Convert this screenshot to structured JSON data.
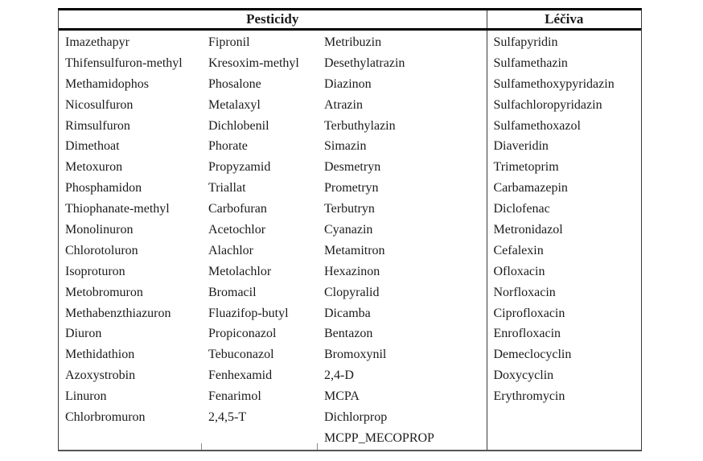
{
  "table": {
    "header": {
      "pesticides_label": "Pesticidy",
      "drugs_label": "Léčiva"
    },
    "columns": [
      {
        "section": "Pesticidy",
        "items": [
          "Imazethapyr",
          "Thifensulfuron-methyl",
          "Methamidophos",
          "Nicosulfuron",
          "Rimsulfuron",
          "Dimethoat",
          "Metoxuron",
          "Phosphamidon",
          "Thiophanate-methyl",
          "Monolinuron",
          "Chlorotoluron",
          "Isoproturon",
          "Metobromuron",
          "Methabenzthiazuron",
          "Diuron",
          "Methidathion",
          "Azoxystrobin",
          "Linuron",
          "Chlorbromuron"
        ]
      },
      {
        "section": "Pesticidy",
        "items": [
          "Fipronil",
          "Kresoxim-methyl",
          "Phosalone",
          "Metalaxyl",
          "Dichlobenil",
          "Phorate",
          "Propyzamid",
          "Triallat",
          "Carbofuran",
          "Acetochlor",
          "Alachlor",
          "Metolachlor",
          "Bromacil",
          "Fluazifop-butyl",
          "Propiconazol",
          "Tebuconazol",
          "Fenhexamid",
          "Fenarimol",
          "2,4,5-T"
        ]
      },
      {
        "section": "Pesticidy",
        "items": [
          "Metribuzin",
          "Desethylatrazin",
          "Diazinon",
          "Atrazin",
          "Terbuthylazin",
          "Simazin",
          "Desmetryn",
          "Prometryn",
          "Terbutryn",
          "Cyanazin",
          "Metamitron",
          "Hexazinon",
          "Clopyralid",
          "Dicamba",
          "Bentazon",
          "Bromoxynil",
          "2,4-D",
          "MCPA",
          "Dichlorprop",
          "MCPP_MECOPROP"
        ]
      },
      {
        "section": "Léčiva",
        "items": [
          "Sulfapyridin",
          "Sulfamethazin",
          "Sulfamethoxypyridazin",
          "Sulfachloropyridazin",
          "Sulfamethoxazol",
          "Diaveridin",
          "Trimetoprim",
          "Carbamazepin",
          "Diclofenac",
          "Metronidazol",
          "Cefalexin",
          "Ofloxacin",
          "Norfloxacin",
          "Ciprofloxacin",
          "Enrofloxacin",
          "Demeclocyclin",
          "Doxycyclin",
          "Erythromycin"
        ]
      }
    ],
    "colors": {
      "text": "#1b1b1b",
      "border_heavy": "#000000",
      "border_light": "#3a3a3a",
      "background": "#ffffff"
    }
  }
}
